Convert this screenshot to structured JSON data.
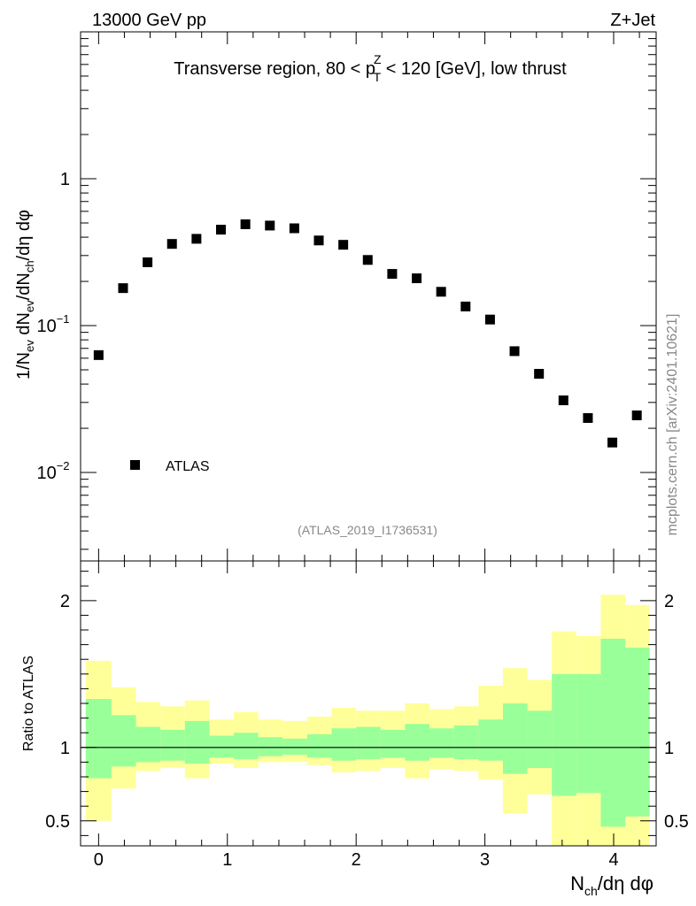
{
  "header": {
    "left": "13000 GeV pp",
    "right": "Z+Jet"
  },
  "watermark": "mcplots.cern.ch [arXiv:2401.10621]",
  "chart_data": [
    {
      "type": "scatter",
      "title": "Transverse region, 80 < p_T^Z < 120 [GeV], low thrust",
      "title_parts": {
        "prefix": "Transverse region, 80 < p",
        "sup": "Z",
        "sub": "T",
        "suffix": " < 120 [GeV], low thrust"
      },
      "ylabel": "1/N_ev dN_ev/dN_ch/dη dφ",
      "yscale": "log",
      "ylim": [
        0.0025,
        10
      ],
      "xlim": [
        -0.14,
        4.33
      ],
      "y_ticks": [
        {
          "value": 1,
          "label": "1"
        },
        {
          "value": 0.1,
          "label": "10",
          "exp": "−1"
        },
        {
          "value": 0.01,
          "label": "10",
          "exp": "−2"
        }
      ],
      "legend": {
        "label": "ATLAS",
        "position": "lower-left"
      },
      "reference": "(ATLAS_2019_I1736531)",
      "series": [
        {
          "name": "ATLAS",
          "x": [
            0.0,
            0.19,
            0.38,
            0.57,
            0.76,
            0.95,
            1.14,
            1.33,
            1.52,
            1.71,
            1.9,
            2.09,
            2.28,
            2.47,
            2.66,
            2.85,
            3.04,
            3.23,
            3.42,
            3.61,
            3.8,
            3.99,
            4.18
          ],
          "y": [
            0.063,
            0.18,
            0.27,
            0.36,
            0.39,
            0.45,
            0.49,
            0.48,
            0.46,
            0.38,
            0.355,
            0.28,
            0.225,
            0.21,
            0.17,
            0.135,
            0.11,
            0.067,
            0.047,
            0.031,
            0.0235,
            0.016,
            0.0245
          ]
        }
      ]
    },
    {
      "type": "area",
      "ylabel": "Ratio to ATLAS",
      "xlabel": "N_ch/dη dφ",
      "xlabel_parts": {
        "N": "N",
        "sub": "ch",
        "rest": "/dη dφ"
      },
      "ylim": [
        0.33,
        2.27
      ],
      "xlim": [
        -0.14,
        4.33
      ],
      "x_ticks": [
        0,
        1,
        2,
        3,
        4
      ],
      "y_ticks": [
        {
          "value": 2,
          "label": "2"
        },
        {
          "value": 1,
          "label": "1"
        },
        {
          "value": 0.5,
          "label": "0.5"
        }
      ],
      "reference_line": 1,
      "bin_edges": [
        -0.1,
        0.1,
        0.29,
        0.48,
        0.67,
        0.86,
        1.05,
        1.24,
        1.43,
        1.62,
        1.81,
        2.0,
        2.19,
        2.38,
        2.57,
        2.76,
        2.95,
        3.14,
        3.33,
        3.52,
        3.71,
        3.9,
        4.09,
        4.28
      ],
      "band_outer": {
        "color": "#ffff99",
        "low": [
          0.5,
          0.72,
          0.84,
          0.86,
          0.79,
          0.89,
          0.86,
          0.9,
          0.9,
          0.88,
          0.83,
          0.84,
          0.86,
          0.79,
          0.85,
          0.84,
          0.78,
          0.55,
          0.68,
          0.33,
          0.33,
          0.33,
          0.33
        ],
        "high": [
          1.59,
          1.41,
          1.31,
          1.28,
          1.32,
          1.19,
          1.24,
          1.19,
          1.18,
          1.21,
          1.27,
          1.25,
          1.25,
          1.3,
          1.26,
          1.28,
          1.42,
          1.54,
          1.46,
          1.79,
          1.76,
          2.04,
          1.97
        ]
      },
      "band_inner": {
        "color": "#99ff99",
        "low": [
          0.79,
          0.87,
          0.9,
          0.91,
          0.89,
          0.93,
          0.92,
          0.94,
          0.95,
          0.93,
          0.91,
          0.92,
          0.93,
          0.91,
          0.93,
          0.92,
          0.91,
          0.82,
          0.86,
          0.67,
          0.69,
          0.46,
          0.53
        ],
        "high": [
          1.33,
          1.22,
          1.14,
          1.12,
          1.18,
          1.08,
          1.1,
          1.07,
          1.06,
          1.09,
          1.13,
          1.14,
          1.12,
          1.16,
          1.13,
          1.15,
          1.19,
          1.3,
          1.25,
          1.5,
          1.5,
          1.74,
          1.68
        ]
      }
    }
  ]
}
